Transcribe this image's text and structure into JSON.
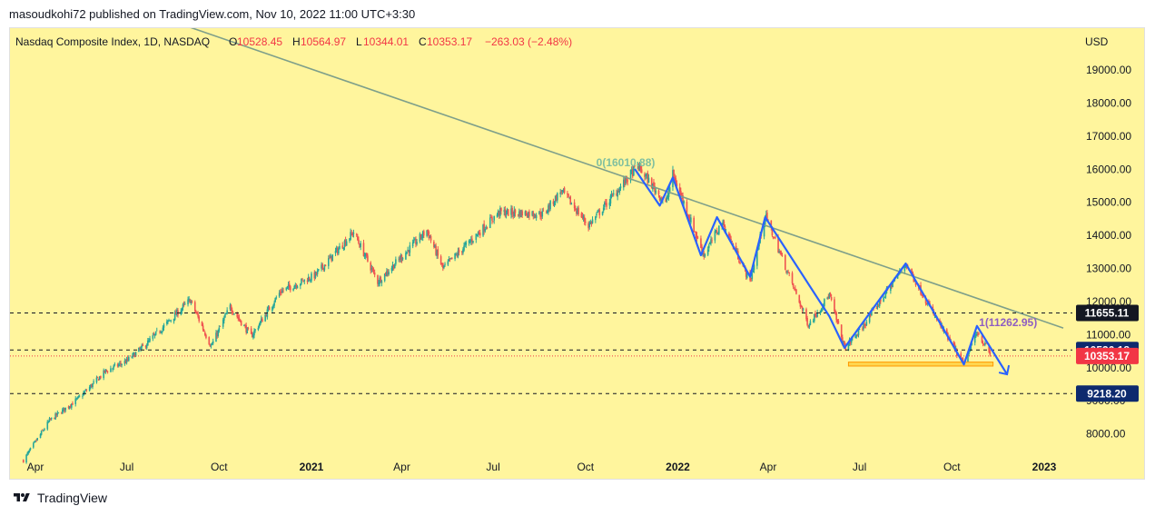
{
  "header": {
    "publisher": "masoudkohi72 published on TradingView.com, Nov 10, 2022 11:00 UTC+3:30"
  },
  "legend": {
    "symbol": "Nasdaq Composite Index, 1D, NASDAQ",
    "o_label": "O",
    "o_value": "10528.45",
    "h_label": "H",
    "h_value": "10564.97",
    "l_label": "L",
    "l_value": "10344.01",
    "c_label": "C",
    "c_value": "10353.17",
    "change": "−263.03 (−2.48%)"
  },
  "currency": "USD",
  "footer": {
    "brand": "TradingView"
  },
  "colors": {
    "background": "#fff59d",
    "price_candles": "#26a69a",
    "down_candles": "#ef5350",
    "pattern_line": "#2962ff",
    "trendline": "#7e9f8a",
    "resistance_label_bg": "#131722",
    "support_label_bg": "#0d2a6e",
    "last_price_bg": "#f23645"
  },
  "chart_data": {
    "type": "line",
    "series_type": "candlestick",
    "ylim": [
      7600,
      20000
    ],
    "y_ticks": [
      8000,
      9000,
      10000,
      11000,
      12000,
      13000,
      14000,
      15000,
      16000,
      17000,
      18000,
      19000
    ],
    "y_tick_labels": [
      "8000.00",
      "9000.00",
      "10000.00",
      "11000.00",
      "12000.00",
      "13000.00",
      "14000.00",
      "15000.00",
      "16000.00",
      "17000.00",
      "18000.00",
      "19000.00"
    ],
    "x_ticks": [
      "2020-04",
      "2020-07",
      "2020-10",
      "2021-01",
      "2021-04",
      "2021-07",
      "2021-10",
      "2022-01",
      "2022-04",
      "2022-07",
      "2022-10",
      "2023-01"
    ],
    "x_tick_labels": [
      "Apr",
      "Jul",
      "Oct",
      "2021",
      "Apr",
      "Jul",
      "Oct",
      "2022",
      "Apr",
      "Jul",
      "Oct",
      "2023"
    ],
    "price_path": [
      [
        "2020-03-20",
        7200
      ],
      [
        "2020-04-15",
        8400
      ],
      [
        "2020-05-15",
        9100
      ],
      [
        "2020-06-10",
        9900
      ],
      [
        "2020-07-01",
        10200
      ],
      [
        "2020-07-20",
        10700
      ],
      [
        "2020-09-02",
        12050
      ],
      [
        "2020-09-23",
        10650
      ],
      [
        "2020-10-12",
        11850
      ],
      [
        "2020-11-02",
        10950
      ],
      [
        "2020-12-01",
        12300
      ],
      [
        "2021-01-05",
        12800
      ],
      [
        "2021-02-12",
        14100
      ],
      [
        "2021-03-08",
        12600
      ],
      [
        "2021-04-26",
        14150
      ],
      [
        "2021-05-12",
        13000
      ],
      [
        "2021-07-07",
        14700
      ],
      [
        "2021-08-20",
        14650
      ],
      [
        "2021-09-07",
        15350
      ],
      [
        "2021-10-04",
        14300
      ],
      [
        "2021-11-22",
        16100
      ],
      [
        "2021-12-20",
        14950
      ],
      [
        "2021-12-27",
        15850
      ],
      [
        "2022-01-27",
        13400
      ],
      [
        "2022-02-14",
        14400
      ],
      [
        "2022-03-14",
        12600
      ],
      [
        "2022-03-29",
        14600
      ],
      [
        "2022-05-11",
        11300
      ],
      [
        "2022-06-01",
        12200
      ],
      [
        "2022-06-16",
        10600
      ],
      [
        "2022-07-01",
        11100
      ],
      [
        "2022-08-16",
        13150
      ],
      [
        "2022-09-13",
        11600
      ],
      [
        "2022-10-13",
        10100
      ],
      [
        "2022-10-26",
        11100
      ],
      [
        "2022-11-09",
        10353
      ]
    ],
    "pattern_path": [
      [
        "2021-11-19",
        16010
      ],
      [
        "2021-12-14",
        14900
      ],
      [
        "2021-12-27",
        15750
      ],
      [
        "2022-01-24",
        13400
      ],
      [
        "2022-02-09",
        14550
      ],
      [
        "2022-03-14",
        12750
      ],
      [
        "2022-03-29",
        14550
      ],
      [
        "2022-06-01",
        11550
      ],
      [
        "2022-06-16",
        10600
      ],
      [
        "2022-08-16",
        13150
      ],
      [
        "2022-10-13",
        10100
      ],
      [
        "2022-10-26",
        11262.95
      ],
      [
        "2022-11-25",
        9800
      ]
    ],
    "trendline": [
      [
        "2020-09-01",
        20300
      ],
      [
        "2023-01-20",
        11200
      ]
    ],
    "horizontal_levels": [
      {
        "value": 11655.11,
        "label": "11655.11",
        "style": "dashed"
      },
      {
        "value": 10536.18,
        "label": "10536.18",
        "style": "dashed"
      },
      {
        "value": 9218.2,
        "label": "9218.20",
        "style": "dashed"
      }
    ],
    "last_price": {
      "value": 10353.17,
      "label": "10353.17"
    },
    "annotations": [
      {
        "text": "0(16010.88)",
        "x": "2021-11-10",
        "y": 16010.88
      },
      {
        "text": "1(11262.95)",
        "x": "2022-10-28",
        "y": 11262.95
      }
    ],
    "support_zone": {
      "x0": "2022-06-20",
      "x1": "2022-11-11",
      "y0": 10050,
      "y1": 10170
    }
  }
}
